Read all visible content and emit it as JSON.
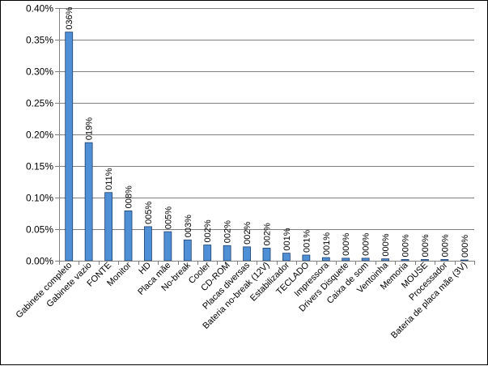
{
  "chart_data": {
    "type": "bar",
    "title": "",
    "xlabel": "",
    "ylabel": "",
    "ylim": [
      0,
      0.4
    ],
    "yticks": [
      "0.00%",
      "0.05%",
      "0.10%",
      "0.15%",
      "0.20%",
      "0.25%",
      "0.30%",
      "0.35%",
      "0.40%"
    ],
    "ytick_values": [
      0,
      0.05,
      0.1,
      0.15,
      0.2,
      0.25,
      0.3,
      0.35,
      0.4
    ],
    "grid": true,
    "legend": false,
    "categories": [
      "Gabinete completo",
      "Gabinete vazio",
      "FONTE",
      "Monitor",
      "HD",
      "Placa mãe",
      "No-break",
      "Cooler",
      "CD-ROM",
      "Placas diversas",
      "Bateria no-break (12V)",
      "Estabilizador",
      "TECLADO",
      "Impressora",
      "Drivers Disquete",
      "Caixa de som",
      "Ventoinha",
      "Memoria",
      "MOUSE",
      "Processador",
      "Bateria de placa mãe (3V)"
    ],
    "values": [
      0.362,
      0.187,
      0.108,
      0.079,
      0.054,
      0.046,
      0.033,
      0.025,
      0.024,
      0.022,
      0.02,
      0.012,
      0.009,
      0.005,
      0.004,
      0.004,
      0.003,
      0.002,
      0.002,
      0.002,
      0.001
    ],
    "data_labels": [
      "036%",
      "019%",
      "011%",
      "008%",
      "005%",
      "005%",
      "003%",
      "002%",
      "002%",
      "002%",
      "002%",
      "001%",
      "001%",
      "001%",
      "000%",
      "000%",
      "000%",
      "000%",
      "000%",
      "000%",
      "000%"
    ],
    "colors": {
      "bar_fill": "#4f8fd6",
      "bar_stroke": "#1f3f6e",
      "grid": "#808080",
      "axis": "#808080"
    }
  }
}
